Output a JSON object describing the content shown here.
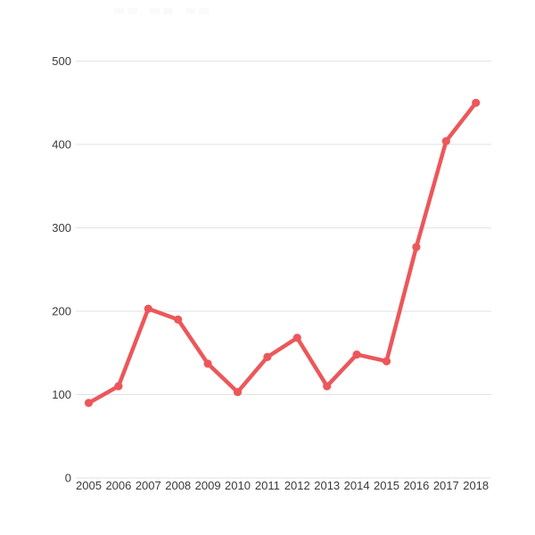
{
  "page": {
    "background_color": "#ffffff"
  },
  "faint_title": {
    "block_count": 6,
    "color": "#fafafa"
  },
  "chart_data": {
    "type": "line",
    "title": "",
    "xlabel": "",
    "ylabel": "",
    "categories": [
      "2005",
      "2006",
      "2007",
      "2008",
      "2009",
      "2010",
      "2011",
      "2012",
      "2013",
      "2014",
      "2015",
      "2016",
      "2017",
      "2018"
    ],
    "values": [
      90,
      110,
      203,
      190,
      137,
      103,
      145,
      168,
      110,
      148,
      140,
      277,
      404,
      450
    ],
    "y_ticks": [
      0,
      100,
      200,
      300,
      400,
      500
    ],
    "ylim": [
      0,
      500
    ],
    "grid": true,
    "legend": "none",
    "line_color": "#ec575a",
    "marker": "circle",
    "gridline_color": "#e2e2e2",
    "tick_label_color": "#3a3a3a"
  }
}
